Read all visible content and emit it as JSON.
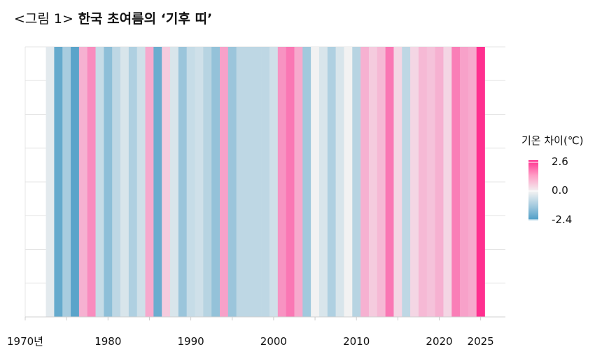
{
  "title": {
    "prefix": "<그림 1>",
    "main": "한국 초여름의 ‘기후 띠’"
  },
  "colors": {
    "cold": "#4a9cc6",
    "neutral": "#f2f2f2",
    "warm": "#ff2f8f"
  },
  "chart_data": {
    "type": "heatmap",
    "title": "<그림 1> 한국 초여름의 ‘기후 띠’",
    "xlabel": "",
    "ylabel": "",
    "x_ticks": [
      {
        "value": 1970,
        "label": "1970년"
      },
      {
        "value": 1980,
        "label": "1980"
      },
      {
        "value": 1990,
        "label": "1990"
      },
      {
        "value": 2000,
        "label": "2000"
      },
      {
        "value": 2010,
        "label": "2010"
      },
      {
        "value": 2020,
        "label": "2020"
      },
      {
        "value": 2025,
        "label": "2025"
      }
    ],
    "xlim": [
      1970,
      2026
    ],
    "grid": true,
    "legend": {
      "title": "기온 차이(℃)",
      "max_label": "2.6",
      "mid_label": "0.0",
      "min_label": "-2.4",
      "min": -2.4,
      "max": 2.6,
      "placement": "right"
    },
    "years": [
      1973,
      1974,
      1975,
      1976,
      1977,
      1978,
      1979,
      1980,
      1981,
      1982,
      1983,
      1984,
      1985,
      1986,
      1987,
      1988,
      1989,
      1990,
      1991,
      1992,
      1993,
      1994,
      1995,
      1996,
      1997,
      1998,
      1999,
      2000,
      2001,
      2002,
      2003,
      2004,
      2005,
      2006,
      2007,
      2008,
      2009,
      2010,
      2011,
      2012,
      2013,
      2014,
      2015,
      2016,
      2017,
      2018,
      2019,
      2020,
      2021,
      2022,
      2023,
      2024,
      2025
    ],
    "values": [
      -0.1,
      -1.9,
      -0.8,
      -2.1,
      0.6,
      1.1,
      -0.4,
      -1.2,
      -0.5,
      -0.2,
      -0.7,
      -0.3,
      0.7,
      -1.8,
      0.3,
      -0.2,
      -1.0,
      -0.4,
      -0.3,
      -0.6,
      -1.1,
      0.8,
      -1.0,
      -0.5,
      -0.5,
      -0.5,
      -0.5,
      -0.3,
      1.0,
      1.4,
      0.7,
      -0.9,
      0.0,
      -0.2,
      -0.7,
      -0.2,
      0.0,
      -0.6,
      0.6,
      0.3,
      0.5,
      1.4,
      0.2,
      -0.5,
      0.2,
      0.5,
      0.4,
      0.6,
      0.2,
      1.3,
      0.8,
      0.7,
      2.6
    ]
  }
}
